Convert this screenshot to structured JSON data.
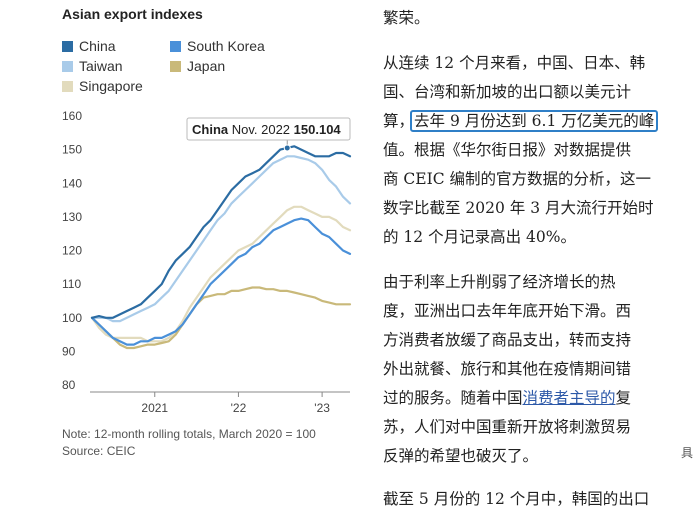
{
  "chart_data": {
    "type": "line",
    "title": "Asian export indexes",
    "x_ticks": [
      "2021",
      "'22",
      "'23"
    ],
    "y_ticks": [
      80,
      90,
      100,
      110,
      120,
      130,
      140,
      150,
      160
    ],
    "ylim": [
      80,
      160
    ],
    "grid": false,
    "legend_position": "top-left",
    "series": [
      {
        "name": "China",
        "color": "#2b6ca3",
        "values": [
          100,
          100.5,
          100,
          100,
          101,
          102,
          103,
          104,
          106,
          108,
          110,
          114,
          117,
          119,
          121,
          124,
          127,
          129,
          132,
          135,
          138,
          140,
          142,
          143,
          144,
          146,
          148,
          150,
          150.5,
          151,
          150,
          149,
          148,
          148,
          148,
          149,
          149,
          148
        ]
      },
      {
        "name": "South Korea",
        "color": "#4a90d9",
        "values": [
          100,
          98,
          96,
          94,
          93,
          92,
          92,
          93,
          93,
          94,
          94,
          95,
          96,
          98,
          101,
          104,
          107,
          110,
          112,
          114,
          116,
          118,
          119,
          121,
          122,
          124,
          126,
          127,
          128,
          129,
          129.5,
          129,
          127,
          125,
          124,
          122,
          120,
          119
        ]
      },
      {
        "name": "Taiwan",
        "color": "#a9cbe9",
        "values": [
          100,
          100,
          100,
          99,
          99,
          100,
          101,
          102,
          103,
          104,
          106,
          108,
          111,
          114,
          117,
          120,
          123,
          126,
          129,
          131,
          134,
          136,
          138,
          140,
          142,
          144,
          146,
          147,
          148,
          148,
          147.5,
          147,
          146,
          144,
          141,
          139,
          136,
          134
        ]
      },
      {
        "name": "Japan",
        "color": "#c9b97a",
        "values": [
          100,
          98,
          96,
          94,
          92,
          91,
          91,
          91.5,
          92,
          92,
          92.5,
          93,
          95,
          98,
          101,
          104,
          106,
          106.5,
          107,
          107,
          108,
          108,
          108.5,
          109,
          109,
          108.5,
          108.5,
          108,
          108,
          107.5,
          107,
          106.5,
          106,
          105,
          104.5,
          104,
          104,
          104
        ]
      },
      {
        "name": "Singapore",
        "color": "#e2dbbd",
        "values": [
          100,
          97,
          95,
          94,
          94,
          94,
          94,
          94,
          93,
          93,
          93,
          94,
          96,
          99,
          103,
          106,
          109,
          112,
          114,
          116,
          118,
          120,
          121,
          122,
          124,
          126,
          128,
          130,
          132,
          133,
          133,
          132,
          131,
          130,
          130,
          129,
          127,
          126
        ]
      }
    ],
    "annotations": [
      {
        "series": "China",
        "label": "China",
        "date": "Nov. 2022",
        "value": "150.104"
      }
    ]
  },
  "notes": {
    "note": "Note: 12-month rolling totals, March 2020 = 100",
    "source": "Source: CEIC"
  },
  "article": {
    "p0": [
      "繁荣。"
    ],
    "p1": [
      "从连续 12 个月来看，中国、日本、韩",
      "国、台湾和新加坡的出口额以美元计"
    ],
    "p1_line3_prefix": "算，",
    "p1_line3_highlight": "去年 9 月份达到 6.1 万亿美元的峰",
    "p1_rest": [
      "值。根据《华尔街日报》对数据提供",
      "商 CEIC 编制的官方数据的分析，这一",
      "数字比截至 2020 年 3 月大流行开始时",
      "的 12 个月记录高出 40%。"
    ],
    "p2": [
      "由于利率上升削弱了经济增长的热",
      "度，亚洲出口去年年底开始下滑。西",
      "方消费者放缓了商品支出，转而支持",
      "外出就餐、旅行和其他在疫情期间错"
    ],
    "p2_line5_prefix": "过的服务。随着中国",
    "p2_line5_link": "消费者主导的",
    "p2_line5_suffix": "复",
    "p2_rest": [
      "苏，人们对中国重新开放将刺激贸易",
      "反弹的希望也破灭了。"
    ],
    "p3_partial": "截至 5 月份的 12 个月中，韩国的出口",
    "edge_glyph": "具"
  }
}
